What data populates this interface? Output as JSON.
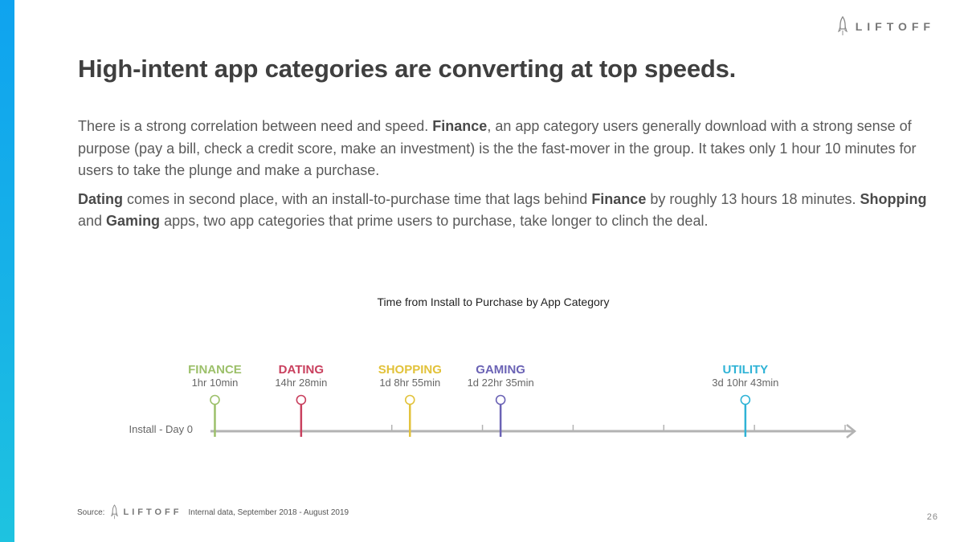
{
  "brand": {
    "name": "LIFTOFF",
    "icon": "rocket-icon"
  },
  "title": "High-intent app categories are converting at top speeds.",
  "paragraph1": {
    "t1": "There is a strong correlation between need and speed. ",
    "b1": "Finance",
    "t2": ", an app category users generally download with a strong sense of purpose (pay a bill, check a credit score, make an investment) is the the fast-mover in the group. It takes only 1 hour 10 minutes for users to take the plunge and make a purchase."
  },
  "paragraph2": {
    "b1": "Dating",
    "t1": " comes in second place, with an install-to-purchase time that lags behind ",
    "b2": "Finance",
    "t2": " by roughly 13 hours 18 minutes. ",
    "b3": "Shopping",
    "t3": " and ",
    "b4": "Gaming",
    "t4": " apps, two app categories that prime users to purchase, take longer to clinch the deal."
  },
  "chart_data": {
    "type": "timeline",
    "title": "Time from Install to Purchase by App Category",
    "axis_start_label": "Install - Day 0",
    "x_unit": "days",
    "xlim": [
      0,
      7
    ],
    "tick_count": 7,
    "points": [
      {
        "name": "FINANCE",
        "label": "1hr 10min",
        "x": 0.0486,
        "color": "#9cc06a"
      },
      {
        "name": "DATING",
        "label": "14hr 28min",
        "x": 1.0,
        "color": "#c9405e"
      },
      {
        "name": "SHOPPING",
        "label": "1d 8hr 55min",
        "x": 2.2,
        "color": "#e2c23a"
      },
      {
        "name": "GAMING",
        "label": "1d 22hr 35min",
        "x": 3.2,
        "color": "#6b63b5"
      },
      {
        "name": "UTILITY",
        "label": "3d 10hr 43min",
        "x": 5.9,
        "color": "#2fb3d6"
      }
    ]
  },
  "footer": {
    "source_label": "Source:",
    "brand": "LIFTOFF",
    "note": "Internal data, September 2018 - August 2019"
  },
  "page_number": "26"
}
